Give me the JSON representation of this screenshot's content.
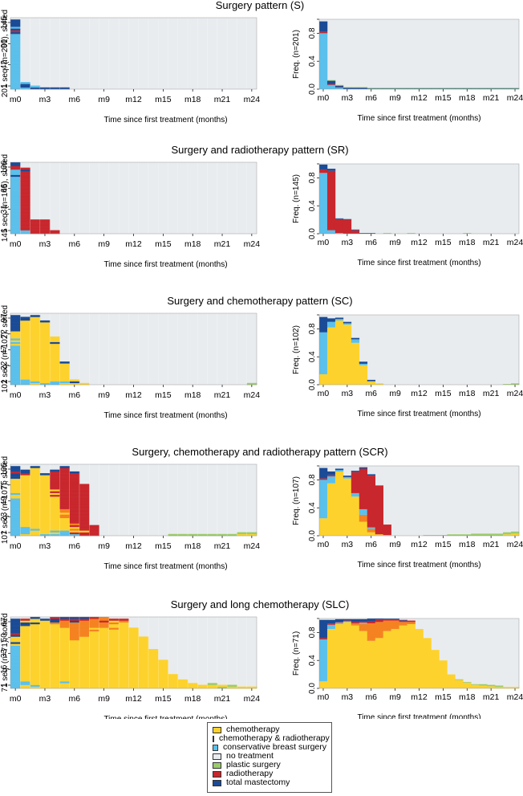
{
  "figure": {
    "xlabel": "Time since first treatment (months)",
    "ticks": [
      "m0",
      "m3",
      "m6",
      "m9",
      "m12",
      "m15",
      "m18",
      "m21",
      "m24"
    ],
    "months": 25,
    "freq_y_ticks": [
      "0.0",
      "0.4",
      "0.8"
    ],
    "colors": {
      "chemo": "#fdd22d",
      "chemorad": "#f58220",
      "cbs": "#5bc0eb",
      "none": "#e8ecef",
      "plastic": "#9bcc6a",
      "radio": "#c8272d",
      "mast": "#1b4b96"
    }
  },
  "legend": {
    "entries": [
      {
        "key": "chemo",
        "label": "chemotherapy"
      },
      {
        "key": "chemorad",
        "label": "chemotherapy & radiotherapy"
      },
      {
        "key": "cbs",
        "label": "conservative breast surgery"
      },
      {
        "key": "none",
        "label": "no treatment"
      },
      {
        "key": "plastic",
        "label": "plastic surgery"
      },
      {
        "key": "radio",
        "label": "radiotherapy"
      },
      {
        "key": "mast",
        "label": "total mastectomy"
      }
    ]
  },
  "chart_data": [
    {
      "type": "area",
      "title": "Surgery pattern (S)",
      "seq_ylabel": "201 seq. (n=201), sorted",
      "seq_yticks": [
        "1",
        "42",
        "90",
        "145"
      ],
      "freq_ylabel": "Freq. (n=201)",
      "categories": [
        "m0",
        "m1",
        "m2",
        "m3",
        "m4",
        "m5",
        "m6",
        "m7",
        "m8",
        "m9",
        "m10",
        "m11",
        "m12",
        "m13",
        "m14",
        "m15",
        "m16",
        "m17",
        "m18",
        "m19",
        "m20",
        "m21",
        "m22",
        "m23",
        "m24"
      ],
      "series": [
        {
          "key": "chemo",
          "values": [
            0,
            0,
            0,
            0,
            0,
            0,
            0,
            0,
            0,
            0,
            0,
            0,
            0,
            0,
            0,
            0,
            0,
            0,
            0,
            0,
            0,
            0,
            0,
            0,
            0
          ]
        },
        {
          "key": "chemorad",
          "values": [
            0,
            0,
            0,
            0,
            0,
            0,
            0,
            0,
            0,
            0,
            0,
            0,
            0,
            0,
            0,
            0,
            0,
            0,
            0,
            0,
            0,
            0,
            0,
            0,
            0
          ]
        },
        {
          "key": "cbs",
          "values": [
            0.8,
            0.06,
            0.02,
            0,
            0,
            0,
            0,
            0,
            0,
            0,
            0,
            0,
            0,
            0,
            0,
            0,
            0,
            0,
            0,
            0,
            0,
            0,
            0,
            0,
            0
          ]
        },
        {
          "key": "radio",
          "values": [
            0.02,
            0.01,
            0.01,
            0,
            0,
            0,
            0,
            0,
            0,
            0,
            0,
            0,
            0,
            0,
            0,
            0,
            0,
            0,
            0,
            0,
            0,
            0,
            0,
            0,
            0
          ]
        },
        {
          "key": "mast",
          "values": [
            0.15,
            0.05,
            0.02,
            0.02,
            0.02,
            0.02,
            0.01,
            0.01,
            0.01,
            0.01,
            0.01,
            0.01,
            0.01,
            0.01,
            0.01,
            0.01,
            0.01,
            0.01,
            0.01,
            0.01,
            0.01,
            0.01,
            0.01,
            0.01,
            0.01
          ]
        },
        {
          "key": "plastic",
          "values": [
            0,
            0.01,
            0.01,
            0.01,
            0.01,
            0.01,
            0.01,
            0.01,
            0.01,
            0.01,
            0.01,
            0.01,
            0.01,
            0.01,
            0.01,
            0.01,
            0.01,
            0.01,
            0.01,
            0.01,
            0.01,
            0.01,
            0.01,
            0.01,
            0.01
          ]
        }
      ]
    },
    {
      "type": "area",
      "title": "Surgery and radiotherapy pattern (SR)",
      "seq_ylabel": "145 seq. (n=145), sorted",
      "seq_yticks": [
        "1",
        "31",
        "66",
        "106"
      ],
      "freq_ylabel": "Freq. (n=145)",
      "categories": [
        "m0",
        "m1",
        "m2",
        "m3",
        "m4",
        "m5",
        "m6",
        "m7",
        "m8",
        "m9",
        "m10",
        "m11",
        "m12",
        "m13",
        "m14",
        "m15",
        "m16",
        "m17",
        "m18",
        "m19",
        "m20",
        "m21",
        "m22",
        "m23",
        "m24"
      ],
      "series": [
        {
          "key": "chemo",
          "values": [
            0,
            0,
            0,
            0,
            0,
            0,
            0,
            0,
            0,
            0,
            0,
            0,
            0,
            0,
            0,
            0,
            0,
            0,
            0,
            0,
            0,
            0,
            0,
            0,
            0
          ]
        },
        {
          "key": "chemorad",
          "values": [
            0,
            0,
            0,
            0,
            0,
            0,
            0,
            0,
            0,
            0,
            0,
            0,
            0,
            0,
            0,
            0,
            0,
            0,
            0,
            0,
            0,
            0,
            0,
            0,
            0
          ]
        },
        {
          "key": "cbs",
          "values": [
            0.87,
            0.05,
            0.01,
            0,
            0,
            0,
            0,
            0,
            0,
            0,
            0,
            0,
            0,
            0,
            0,
            0,
            0,
            0,
            0,
            0,
            0,
            0,
            0,
            0,
            0
          ]
        },
        {
          "key": "radio",
          "values": [
            0.05,
            0.85,
            0.2,
            0.2,
            0.05,
            0,
            0,
            0,
            0,
            0,
            0,
            0,
            0,
            0,
            0,
            0,
            0,
            0,
            0,
            0,
            0,
            0,
            0,
            0,
            0
          ]
        },
        {
          "key": "mast",
          "values": [
            0.07,
            0.03,
            0.01,
            0.01,
            0.01,
            0.01,
            0.01,
            0,
            0,
            0,
            0,
            0,
            0,
            0,
            0,
            0,
            0,
            0,
            0,
            0,
            0,
            0,
            0,
            0,
            0
          ]
        },
        {
          "key": "plastic",
          "values": [
            0,
            0,
            0,
            0,
            0,
            0,
            0,
            0,
            0.01,
            0,
            0,
            0.01,
            0,
            0,
            0,
            0,
            0,
            0,
            0.01,
            0,
            0,
            0,
            0,
            0,
            0
          ]
        }
      ]
    },
    {
      "type": "area",
      "title": "Surgery and chemotherapy pattern (SC)",
      "seq_ylabel": "102 seq. (n=102), sorted",
      "seq_yticks": [
        "1",
        "22",
        "47",
        "72",
        "97"
      ],
      "freq_ylabel": "Freq. (n=102)",
      "categories": [
        "m0",
        "m1",
        "m2",
        "m3",
        "m4",
        "m5",
        "m6",
        "m7",
        "m8",
        "m9",
        "m10",
        "m11",
        "m12",
        "m13",
        "m14",
        "m15",
        "m16",
        "m17",
        "m18",
        "m19",
        "m20",
        "m21",
        "m22",
        "m23",
        "m24"
      ],
      "series": [
        {
          "key": "chemo",
          "values": [
            0.15,
            0.82,
            0.92,
            0.86,
            0.6,
            0.28,
            0.05,
            0.02,
            0,
            0,
            0,
            0,
            0,
            0,
            0,
            0,
            0,
            0,
            0,
            0,
            0,
            0,
            0,
            0,
            0
          ]
        },
        {
          "key": "chemorad",
          "values": [
            0,
            0,
            0,
            0,
            0,
            0,
            0,
            0,
            0,
            0,
            0,
            0,
            0,
            0,
            0,
            0,
            0,
            0,
            0,
            0,
            0,
            0,
            0,
            0,
            0
          ]
        },
        {
          "key": "cbs",
          "values": [
            0.6,
            0.08,
            0.02,
            0.02,
            0.05,
            0.02,
            0,
            0,
            0,
            0,
            0,
            0,
            0,
            0,
            0,
            0,
            0,
            0,
            0,
            0,
            0,
            0,
            0,
            0,
            0
          ]
        },
        {
          "key": "radio",
          "values": [
            0,
            0,
            0,
            0,
            0,
            0,
            0,
            0,
            0,
            0,
            0,
            0,
            0,
            0,
            0,
            0,
            0,
            0,
            0,
            0,
            0,
            0,
            0,
            0,
            0
          ]
        },
        {
          "key": "mast",
          "values": [
            0.22,
            0.05,
            0.02,
            0.02,
            0.02,
            0.03,
            0.02,
            0,
            0,
            0,
            0,
            0,
            0,
            0,
            0,
            0,
            0,
            0,
            0,
            0,
            0,
            0,
            0,
            0,
            0
          ]
        },
        {
          "key": "plastic",
          "values": [
            0,
            0,
            0,
            0,
            0,
            0,
            0,
            0,
            0,
            0,
            0,
            0,
            0,
            0,
            0,
            0,
            0,
            0,
            0,
            0,
            0,
            0,
            0,
            0.01,
            0.02
          ]
        }
      ]
    },
    {
      "type": "area",
      "title": "Surgery, chemotherapy and radiotherapy pattern (SCR)",
      "seq_ylabel": "107 seq. (n=107), sorted",
      "seq_yticks": [
        "1",
        "23",
        "49",
        "75",
        "105"
      ],
      "freq_ylabel": "Freq. (n=107)",
      "categories": [
        "m0",
        "m1",
        "m2",
        "m3",
        "m4",
        "m5",
        "m6",
        "m7",
        "m8",
        "m9",
        "m10",
        "m11",
        "m12",
        "m13",
        "m14",
        "m15",
        "m16",
        "m17",
        "m18",
        "m19",
        "m20",
        "m21",
        "m22",
        "m23",
        "m24"
      ],
      "series": [
        {
          "key": "chemo",
          "values": [
            0.25,
            0.75,
            0.92,
            0.82,
            0.56,
            0.2,
            0.05,
            0.02,
            0.01,
            0,
            0,
            0,
            0,
            0,
            0,
            0,
            0,
            0,
            0,
            0,
            0,
            0,
            0,
            0.02,
            0.03
          ]
        },
        {
          "key": "chemorad",
          "values": [
            0,
            0,
            0,
            0,
            0,
            0.1,
            0.05,
            0,
            0,
            0,
            0,
            0,
            0,
            0,
            0,
            0,
            0,
            0,
            0,
            0,
            0,
            0,
            0,
            0,
            0
          ]
        },
        {
          "key": "cbs",
          "values": [
            0.55,
            0.1,
            0.02,
            0.02,
            0.05,
            0.08,
            0.02,
            0,
            0,
            0,
            0,
            0,
            0,
            0,
            0,
            0,
            0,
            0,
            0,
            0,
            0,
            0,
            0,
            0,
            0
          ]
        },
        {
          "key": "radio",
          "values": [
            0.02,
            0.02,
            0,
            0,
            0.3,
            0.58,
            0.74,
            0.7,
            0.15,
            0,
            0,
            0,
            0,
            0,
            0,
            0,
            0,
            0,
            0,
            0,
            0,
            0,
            0,
            0,
            0
          ]
        },
        {
          "key": "mast",
          "values": [
            0.15,
            0.05,
            0.02,
            0.02,
            0.02,
            0.02,
            0.02,
            0,
            0,
            0,
            0,
            0,
            0,
            0,
            0,
            0,
            0,
            0,
            0,
            0,
            0,
            0,
            0,
            0,
            0
          ]
        },
        {
          "key": "plastic",
          "values": [
            0,
            0,
            0,
            0,
            0,
            0,
            0,
            0,
            0,
            0,
            0,
            0,
            0,
            0.01,
            0.01,
            0.01,
            0.02,
            0.02,
            0.02,
            0.03,
            0.03,
            0.03,
            0.03,
            0.03,
            0.03
          ]
        }
      ]
    },
    {
      "type": "area",
      "title": "Surgery and long chemotherapy (SLC)",
      "seq_ylabel": "71 seq. (n=71), sorted",
      "seq_yticks": [
        "1",
        "16",
        "33",
        "50",
        "67"
      ],
      "freq_ylabel": "Freq. (n=71)",
      "categories": [
        "m0",
        "m1",
        "m2",
        "m3",
        "m4",
        "m5",
        "m6",
        "m7",
        "m8",
        "m9",
        "m10",
        "m11",
        "m12",
        "m13",
        "m14",
        "m15",
        "m16",
        "m17",
        "m18",
        "m19",
        "m20",
        "m21",
        "m22",
        "m23",
        "m24"
      ],
      "series": [
        {
          "key": "chemo",
          "values": [
            0.1,
            0.85,
            0.92,
            0.95,
            0.9,
            0.82,
            0.68,
            0.72,
            0.82,
            0.85,
            0.9,
            0.92,
            0.85,
            0.72,
            0.55,
            0.4,
            0.2,
            0.12,
            0.08,
            0.05,
            0.04,
            0.03,
            0.02,
            0.02,
            0.02
          ]
        },
        {
          "key": "chemorad",
          "values": [
            0,
            0,
            0,
            0,
            0.03,
            0.1,
            0.25,
            0.23,
            0.15,
            0.12,
            0.05,
            0.03,
            0,
            0,
            0,
            0,
            0,
            0,
            0,
            0,
            0,
            0,
            0,
            0,
            0
          ]
        },
        {
          "key": "cbs",
          "values": [
            0.6,
            0.06,
            0.02,
            0.01,
            0,
            0.02,
            0,
            0,
            0,
            0,
            0,
            0,
            0,
            0,
            0,
            0,
            0,
            0,
            0,
            0,
            0,
            0,
            0,
            0,
            0
          ]
        },
        {
          "key": "radio",
          "values": [
            0.02,
            0.02,
            0.01,
            0.01,
            0.02,
            0.02,
            0.03,
            0.03,
            0.02,
            0.02,
            0.02,
            0.02,
            0,
            0,
            0,
            0,
            0,
            0,
            0,
            0,
            0,
            0,
            0,
            0,
            0
          ]
        },
        {
          "key": "mast",
          "values": [
            0.26,
            0.05,
            0.04,
            0.02,
            0.04,
            0.03,
            0.04,
            0.02,
            0.01,
            0.01,
            0.01,
            0,
            0,
            0,
            0,
            0,
            0,
            0,
            0,
            0,
            0,
            0,
            0,
            0,
            0
          ]
        },
        {
          "key": "plastic",
          "values": [
            0,
            0,
            0,
            0,
            0,
            0,
            0,
            0,
            0,
            0,
            0,
            0,
            0,
            0,
            0,
            0,
            0,
            0.01,
            0.01,
            0.01,
            0.02,
            0.02,
            0.02,
            0,
            0
          ]
        }
      ]
    }
  ]
}
